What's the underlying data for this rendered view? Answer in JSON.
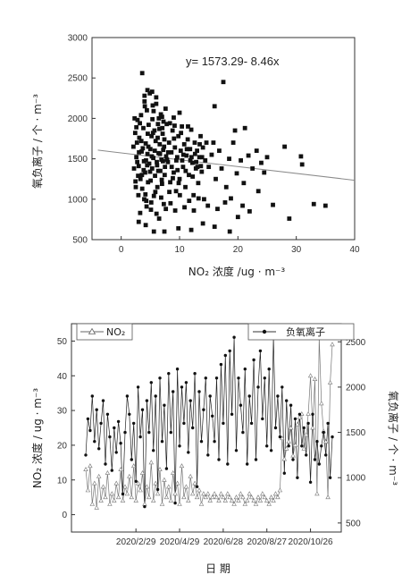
{
  "chart_data": [
    {
      "type": "scatter",
      "title": "",
      "equation": "y= 1573.29- 8.46x",
      "xlabel": "NO₂ 浓度 /ug · m⁻³",
      "ylabel": "氧负离子 / 个 · m⁻³",
      "xlim": [
        -5,
        40
      ],
      "ylim": [
        500,
        3000
      ],
      "xticks": [
        "0",
        "10",
        "20",
        "30",
        "40"
      ],
      "yticks": [
        "500",
        "1000",
        "1500",
        "2000",
        "2500",
        "3000"
      ],
      "trend": {
        "intercept": 1573.29,
        "slope": -8.46,
        "x_range": [
          -4,
          40
        ]
      },
      "points": [
        [
          2.1,
          1650
        ],
        [
          2.4,
          1820
        ],
        [
          2.6,
          1520
        ],
        [
          2.8,
          1980
        ],
        [
          3.0,
          1410
        ],
        [
          3.1,
          1760
        ],
        [
          3.3,
          1250
        ],
        [
          3.4,
          2040
        ],
        [
          3.5,
          1590
        ],
        [
          3.6,
          1130
        ],
        [
          3.8,
          1880
        ],
        [
          3.9,
          1470
        ],
        [
          4.0,
          2210
        ],
        [
          4.1,
          1330
        ],
        [
          4.2,
          1690
        ],
        [
          4.3,
          980
        ],
        [
          4.4,
          2100
        ],
        [
          4.5,
          1560
        ],
        [
          4.6,
          1210
        ],
        [
          4.7,
          1920
        ],
        [
          4.8,
          1440
        ],
        [
          4.9,
          2310
        ],
        [
          5.0,
          1620
        ],
        [
          5.1,
          870
        ],
        [
          5.2,
          1780
        ],
        [
          5.3,
          1380
        ],
        [
          5.4,
          2160
        ],
        [
          5.5,
          1510
        ],
        [
          5.6,
          1040
        ],
        [
          5.7,
          1850
        ],
        [
          5.8,
          1290
        ],
        [
          5.9,
          1720
        ],
        [
          6.0,
          2260
        ],
        [
          6.1,
          1460
        ],
        [
          6.2,
          1150
        ],
        [
          6.3,
          1930
        ],
        [
          6.4,
          1570
        ],
        [
          6.5,
          760
        ],
        [
          6.6,
          1680
        ],
        [
          6.7,
          1350
        ],
        [
          6.8,
          2050
        ],
        [
          6.9,
          1490
        ],
        [
          7.0,
          1190
        ],
        [
          7.1,
          1810
        ],
        [
          7.2,
          1610
        ],
        [
          7.3,
          940
        ],
        [
          7.4,
          1740
        ],
        [
          7.5,
          1400
        ],
        [
          7.6,
          2120
        ],
        [
          7.7,
          1530
        ],
        [
          2.2,
          1380
        ],
        [
          2.5,
          1150
        ],
        [
          2.7,
          1700
        ],
        [
          2.9,
          1290
        ],
        [
          3.2,
          1940
        ],
        [
          3.7,
          1630
        ],
        [
          4.15,
          1060
        ],
        [
          4.55,
          1810
        ],
        [
          4.95,
          1340
        ],
        [
          5.35,
          1990
        ],
        [
          5.75,
          1600
        ],
        [
          6.15,
          1420
        ],
        [
          6.55,
          1870
        ],
        [
          6.95,
          1240
        ],
        [
          7.35,
          1650
        ],
        [
          7.8,
          1930
        ],
        [
          8.0,
          1460
        ],
        [
          8.2,
          1700
        ],
        [
          8.4,
          1210
        ],
        [
          8.6,
          1580
        ],
        [
          8.8,
          1850
        ],
        [
          9.0,
          1330
        ],
        [
          9.2,
          1640
        ],
        [
          9.4,
          1100
        ],
        [
          9.6,
          1520
        ],
        [
          9.8,
          1780
        ],
        [
          10.0,
          1250
        ],
        [
          10.2,
          1600
        ],
        [
          10.4,
          1900
        ],
        [
          10.6,
          1400
        ],
        [
          10.8,
          1680
        ],
        [
          11.0,
          1150
        ],
        [
          11.2,
          1540
        ],
        [
          11.4,
          1740
        ],
        [
          11.6,
          1300
        ],
        [
          11.8,
          1620
        ],
        [
          12.0,
          1860
        ],
        [
          12.2,
          1450
        ],
        [
          12.4,
          1050
        ],
        [
          12.6,
          1700
        ],
        [
          12.8,
          1380
        ],
        [
          13.0,
          1600
        ],
        [
          13.2,
          1200
        ],
        [
          13.4,
          1520
        ],
        [
          13.6,
          1780
        ],
        [
          13.8,
          1340
        ],
        [
          14.0,
          1640
        ],
        [
          14.2,
          1000
        ],
        [
          14.4,
          1480
        ],
        [
          14.6,
          1700
        ],
        [
          3.6,
          2560
        ],
        [
          4.5,
          2350
        ],
        [
          5.3,
          2330
        ],
        [
          4.0,
          2280
        ],
        [
          6.0,
          2180
        ],
        [
          10.0,
          2070
        ],
        [
          16.0,
          2150
        ],
        [
          17.5,
          2450
        ],
        [
          7.0,
          2020
        ],
        [
          9.0,
          2010
        ],
        [
          4.2,
          680
        ],
        [
          5.6,
          600
        ],
        [
          7.4,
          600
        ],
        [
          9.8,
          640
        ],
        [
          12.0,
          620
        ],
        [
          14.0,
          700
        ],
        [
          16.0,
          660
        ],
        [
          18.6,
          600
        ],
        [
          20.0,
          780
        ],
        [
          3.0,
          720
        ],
        [
          15.0,
          1400
        ],
        [
          15.5,
          1550
        ],
        [
          16.2,
          1250
        ],
        [
          16.8,
          1600
        ],
        [
          17.2,
          1380
        ],
        [
          18.0,
          1150
        ],
        [
          18.5,
          1500
        ],
        [
          19.2,
          1700
        ],
        [
          19.8,
          1320
        ],
        [
          20.5,
          1480
        ],
        [
          21.0,
          1200
        ],
        [
          21.8,
          1540
        ],
        [
          22.5,
          1380
        ],
        [
          23.2,
          1600
        ],
        [
          24.0,
          1450
        ],
        [
          25.0,
          1520
        ],
        [
          19.5,
          1850
        ],
        [
          21.2,
          1880
        ],
        [
          18.8,
          1010
        ],
        [
          20.8,
          920
        ],
        [
          22.0,
          850
        ],
        [
          23.5,
          1100
        ],
        [
          26.0,
          930
        ],
        [
          28.0,
          1650
        ],
        [
          28.8,
          760
        ],
        [
          30.8,
          1530
        ],
        [
          31.0,
          1430
        ],
        [
          33.0,
          940
        ],
        [
          35.0,
          920
        ],
        [
          24.5,
          1330
        ],
        [
          2.3,
          2000
        ],
        [
          2.6,
          1890
        ],
        [
          3.05,
          1580
        ],
        [
          3.45,
          1720
        ],
        [
          3.85,
          1360
        ],
        [
          4.25,
          1480
        ],
        [
          4.65,
          1650
        ],
        [
          5.05,
          1230
        ],
        [
          5.45,
          1820
        ],
        [
          5.85,
          1090
        ],
        [
          6.25,
          1760
        ],
        [
          6.65,
          1560
        ],
        [
          7.05,
          1880
        ],
        [
          7.45,
          1300
        ],
        [
          7.85,
          1490
        ],
        [
          8.25,
          1090
        ],
        [
          8.65,
          1400
        ],
        [
          9.05,
          1750
        ],
        [
          9.45,
          1480
        ],
        [
          9.85,
          1200
        ],
        [
          10.25,
          1820
        ],
        [
          10.65,
          1550
        ],
        [
          11.05,
          1350
        ],
        [
          11.45,
          1900
        ],
        [
          11.85,
          1480
        ],
        [
          12.25,
          1280
        ],
        [
          12.65,
          1560
        ],
        [
          13.05,
          1400
        ],
        [
          13.45,
          1680
        ],
        [
          13.85,
          1520
        ],
        [
          3.25,
          830
        ],
        [
          4.35,
          910
        ],
        [
          5.15,
          960
        ],
        [
          6.05,
          820
        ],
        [
          6.85,
          1020
        ],
        [
          7.65,
          880
        ],
        [
          8.45,
          950
        ],
        [
          9.25,
          860
        ],
        [
          10.05,
          1050
        ],
        [
          10.85,
          900
        ],
        [
          11.65,
          980
        ],
        [
          12.45,
          860
        ],
        [
          13.25,
          1010
        ],
        [
          14.85,
          920
        ],
        [
          16.5,
          880
        ],
        [
          17.8,
          960
        ],
        [
          2.75,
          1460
        ],
        [
          3.55,
          1300
        ],
        [
          4.45,
          1420
        ],
        [
          5.25,
          1530
        ],
        [
          6.35,
          1350
        ],
        [
          7.15,
          1470
        ],
        [
          8.05,
          1580
        ],
        [
          8.85,
          1260
        ],
        [
          9.65,
          1360
        ],
        [
          10.45,
          1480
        ],
        [
          11.25,
          1620
        ],
        [
          12.05,
          1520
        ],
        [
          12.85,
          1460
        ],
        [
          13.65,
          1410
        ],
        [
          4.05,
          2150
        ],
        [
          5.55,
          2090
        ],
        [
          6.45,
          2000
        ],
        [
          7.25,
          1960
        ],
        [
          8.35,
          1940
        ],
        [
          9.15,
          1910
        ],
        [
          2.45,
          1220
        ],
        [
          2.95,
          1050
        ],
        [
          3.95,
          1000
        ],
        [
          15.8,
          1700
        ]
      ]
    },
    {
      "type": "line",
      "title": "",
      "xlabel": "日 期",
      "ylabel": "NO₂ 浓度 / ug · m⁻³",
      "y2label": "氧负离子 / 个 · m⁻³",
      "ylim": [
        -5,
        55
      ],
      "y2lim": [
        400,
        2700
      ],
      "yticks": [
        "0",
        "10",
        "20",
        "30",
        "40",
        "50"
      ],
      "y2ticks": [
        "500",
        "1000",
        "1500",
        "2000",
        "2500"
      ],
      "x_labels": [
        "2020/2/29",
        "2020/4/29",
        "2020/6/28",
        "2020/8/27",
        "2020/10/26"
      ],
      "x_label_index": [
        23,
        43,
        63,
        83,
        103
      ],
      "legend": [
        "NO₂",
        "负氧离子"
      ],
      "series": [
        {
          "name": "NO₂",
          "axis": "left",
          "values": [
            13,
            7,
            14,
            3,
            9,
            2,
            11,
            4,
            8,
            5,
            12,
            3,
            6,
            4,
            9,
            5,
            13,
            4,
            8,
            6,
            11,
            5,
            14,
            4,
            9,
            7,
            12,
            3,
            8,
            5,
            15,
            4,
            9,
            6,
            13,
            3,
            10,
            5,
            8,
            4,
            12,
            6,
            9,
            3,
            14,
            5,
            8,
            4,
            11,
            6,
            9,
            5,
            7,
            3,
            6,
            5,
            6,
            4,
            5,
            6,
            5,
            4,
            6,
            5,
            4,
            6,
            5,
            4,
            3,
            5,
            4,
            6,
            5,
            3,
            4,
            6,
            5,
            4,
            3,
            5,
            4,
            6,
            5,
            4,
            3,
            5,
            4,
            6,
            5,
            7,
            22,
            16,
            19,
            21,
            25,
            17,
            20,
            26,
            28,
            29,
            19,
            23,
            29,
            40,
            25,
            39,
            6,
            51,
            32,
            24,
            21,
            5,
            38,
            49
          ]
        },
        {
          "name": "负氧离子",
          "axis": "right",
          "values": [
            1250,
            1650,
            1520,
            1900,
            1400,
            1750,
            1320,
            1600,
            1850,
            1150,
            1700,
            1450,
            1080,
            1550,
            1280,
            1620,
            1380,
            820,
            1500,
            1900,
            1700,
            1200,
            1600,
            960,
            2000,
            1450,
            1750,
            680,
            1850,
            1500,
            2050,
            1300,
            1900,
            870,
            2100,
            1400,
            1800,
            1100,
            2150,
            1500,
            1950,
            720,
            2200,
            1350,
            2000,
            1600,
            2050,
            1280,
            1850,
            1550,
            2150,
            900,
            1950,
            1400,
            1750,
            2100,
            1250,
            1900,
            1680,
            1400,
            2100,
            1200,
            2250,
            1600,
            2350,
            1150,
            2400,
            1700,
            2550,
            1300,
            2100,
            1800,
            1500,
            2200,
            1150,
            1900,
            1600,
            2300,
            1200,
            2000,
            2400,
            1650,
            2100,
            1350,
            2200,
            1300,
            2550,
            1550,
            1900,
            1450,
            2000,
            1050,
            1850,
            1350,
            1800,
            1200,
            1650,
            1000,
            1700,
            1350,
            1550,
            1250,
            1600,
            950,
            1700,
            1200,
            1400,
            1150,
            1350,
            1500,
            1250,
            1600,
            1000,
            1450
          ]
        }
      ]
    }
  ]
}
